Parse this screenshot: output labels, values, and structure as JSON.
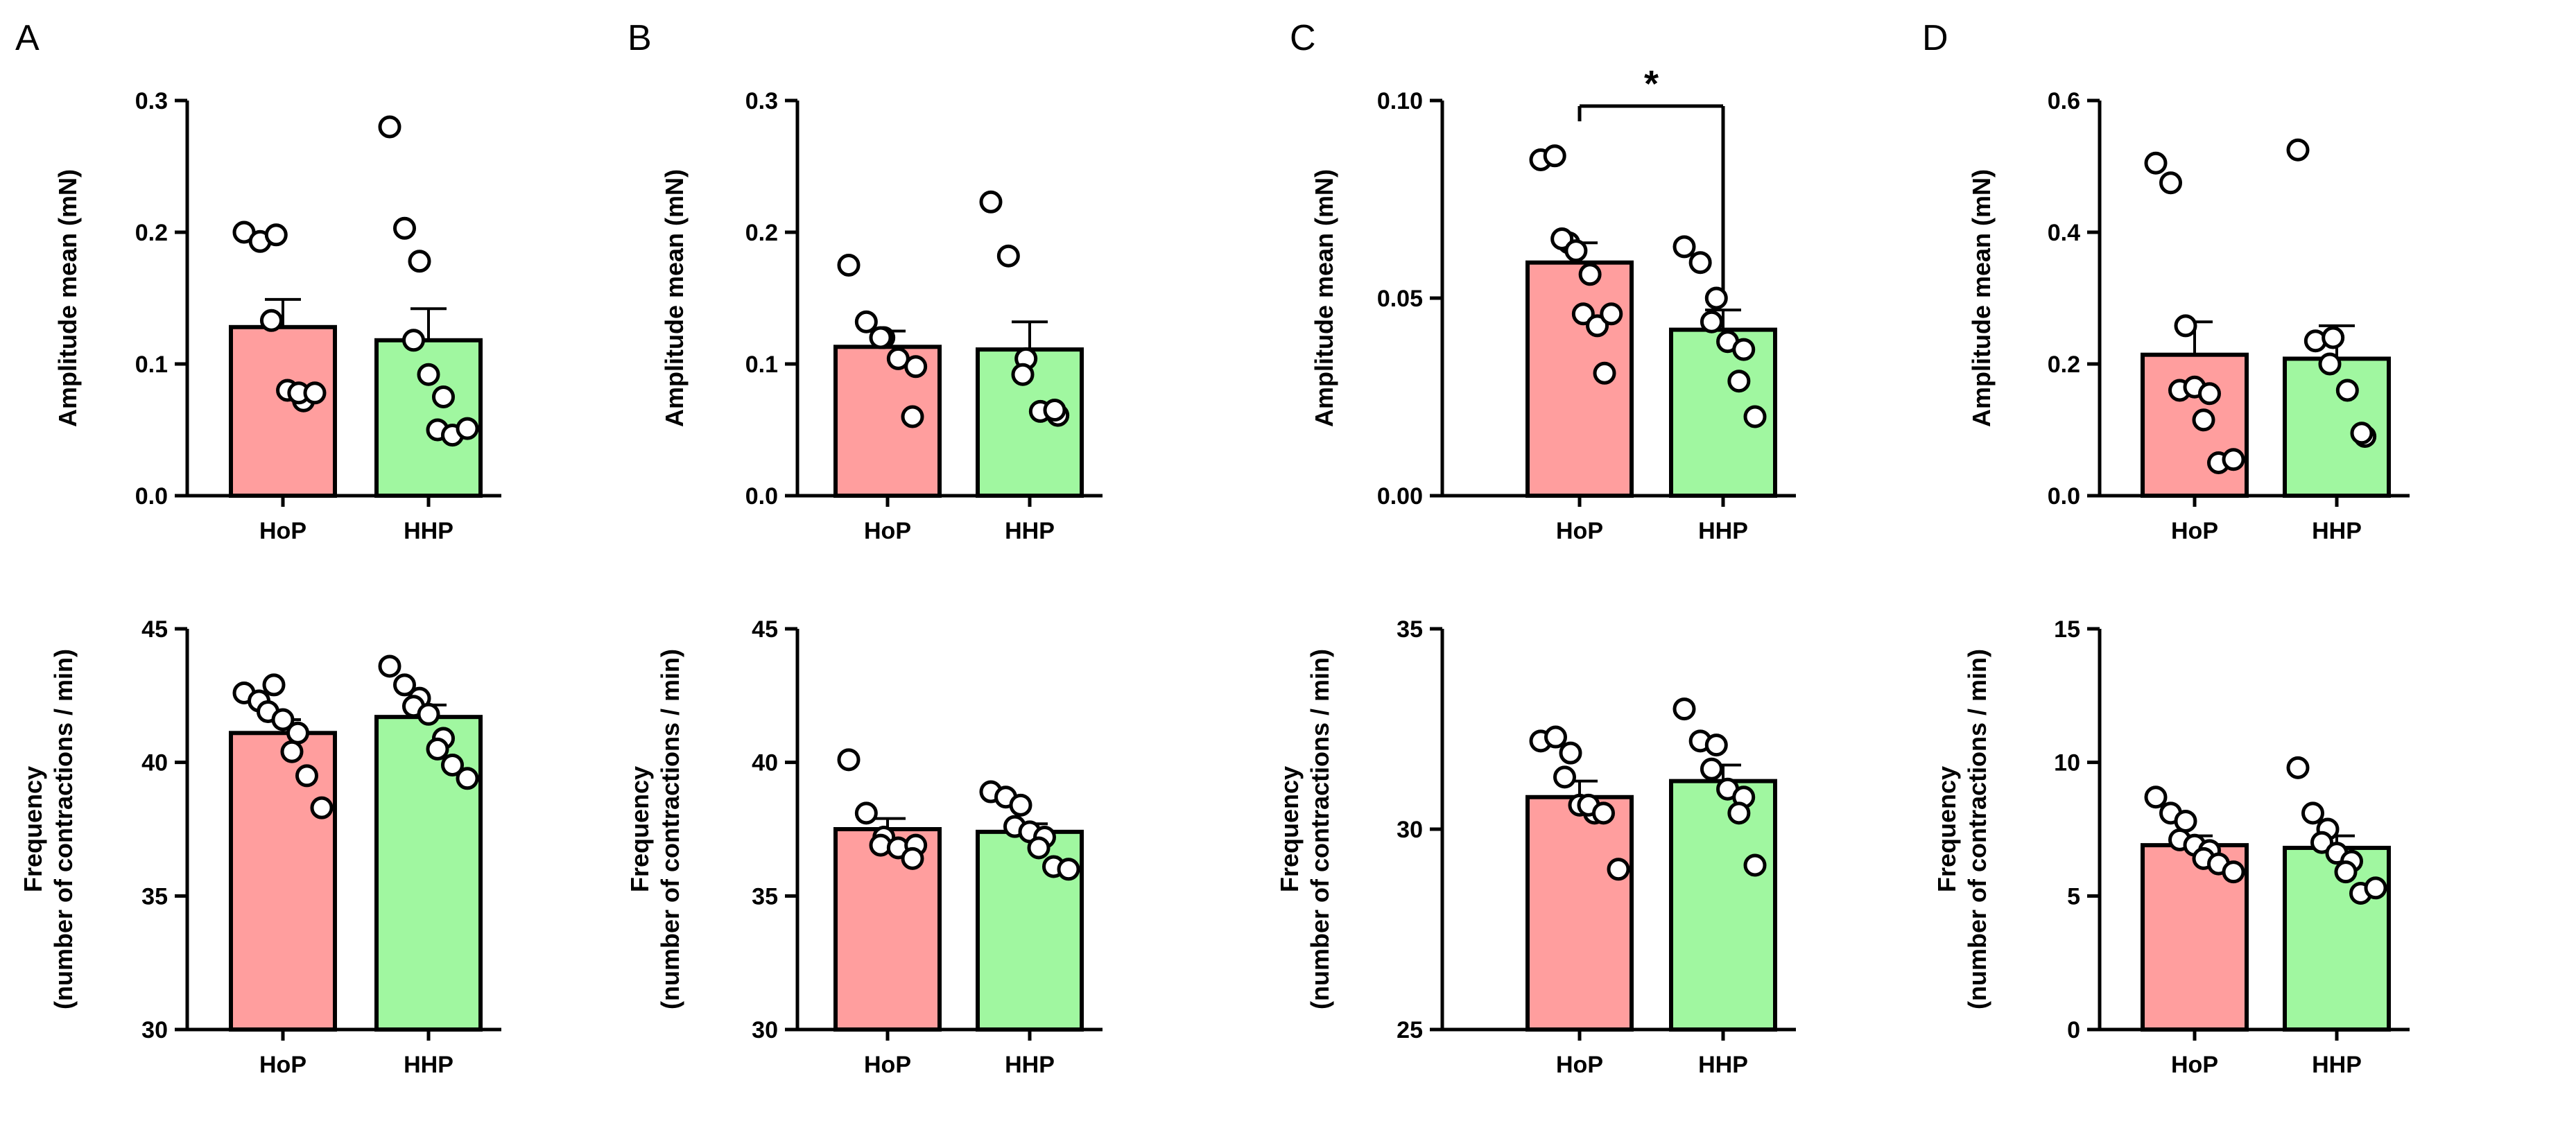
{
  "panel_letters": [
    "A",
    "B",
    "C",
    "D"
  ],
  "colors": {
    "HoP": "#ff9e9e",
    "HHP": "#a0f7a0",
    "axis": "#000000",
    "point_fill": "#ffffff"
  },
  "chart_data": [
    {
      "id": "A-top",
      "panel": "A",
      "type": "bar",
      "categories": [
        "HoP",
        "HHP"
      ],
      "ylabel": "Amplitude mean (mN)",
      "ylim": [
        0,
        0.3
      ],
      "yticks": [
        0.0,
        0.1,
        0.2,
        0.3
      ],
      "ytick_labels": [
        "0.0",
        "0.1",
        "0.2",
        "0.3"
      ],
      "means": [
        0.128,
        0.118
      ],
      "sem": [
        0.021,
        0.024
      ],
      "points": [
        [
          0.2,
          0.193,
          0.198,
          0.133,
          0.08,
          0.072,
          0.078,
          0.078
        ],
        [
          0.28,
          0.203,
          0.178,
          0.118,
          0.092,
          0.075,
          0.05,
          0.046,
          0.051
        ]
      ],
      "significance": null
    },
    {
      "id": "B-top",
      "panel": "B",
      "type": "bar",
      "categories": [
        "HoP",
        "HHP"
      ],
      "ylabel": "Amplitude mean (mN)",
      "ylim": [
        0,
        0.3
      ],
      "yticks": [
        0.0,
        0.1,
        0.2,
        0.3
      ],
      "ytick_labels": [
        "0.0",
        "0.1",
        "0.2",
        "0.3"
      ],
      "means": [
        0.113,
        0.111
      ],
      "sem": [
        0.012,
        0.021
      ],
      "points": [
        [
          0.175,
          0.132,
          0.12,
          0.12,
          0.104,
          0.098,
          0.06
        ],
        [
          0.223,
          0.182,
          0.104,
          0.092,
          0.064,
          0.061,
          0.065
        ]
      ],
      "significance": null
    },
    {
      "id": "C-top",
      "panel": "C",
      "type": "bar",
      "categories": [
        "HoP",
        "HHP"
      ],
      "ylabel": "Amplitude mean (mN)",
      "ylim": [
        0,
        0.1
      ],
      "yticks": [
        0.0,
        0.05,
        0.1
      ],
      "ytick_labels": [
        "0.00",
        "0.05",
        "0.10"
      ],
      "means": [
        0.059,
        0.042
      ],
      "sem": [
        0.005,
        0.005
      ],
      "points": [
        [
          0.085,
          0.086,
          0.064,
          0.065,
          0.062,
          0.056,
          0.046,
          0.043,
          0.046,
          0.031
        ],
        [
          0.063,
          0.059,
          0.05,
          0.044,
          0.039,
          0.037,
          0.029,
          0.02
        ]
      ],
      "significance": "*"
    },
    {
      "id": "D-top",
      "panel": "D",
      "type": "bar",
      "categories": [
        "HoP",
        "HHP"
      ],
      "ylabel": "Amplitude mean (mN)",
      "ylim": [
        0,
        0.6
      ],
      "yticks": [
        0.0,
        0.2,
        0.4,
        0.6
      ],
      "ytick_labels": [
        "0.0",
        "0.2",
        "0.4",
        "0.6"
      ],
      "means": [
        0.214,
        0.208
      ],
      "sem": [
        0.05,
        0.05
      ],
      "points": [
        [
          0.505,
          0.475,
          0.258,
          0.16,
          0.165,
          0.155,
          0.115,
          0.05,
          0.055
        ],
        [
          0.525,
          0.235,
          0.24,
          0.2,
          0.16,
          0.09,
          0.095
        ]
      ],
      "significance": null
    },
    {
      "id": "A-bottom",
      "panel": "A",
      "type": "bar",
      "categories": [
        "HoP",
        "HHP"
      ],
      "ylabel": "Frequency (number of contractions / min)",
      "ylim": [
        30,
        45
      ],
      "yticks": [
        30,
        35,
        40,
        45
      ],
      "ytick_labels": [
        "30",
        "35",
        "40",
        "45"
      ],
      "means": [
        41.1,
        41.7
      ],
      "sem": [
        0.5,
        0.45
      ],
      "points": [
        [
          42.6,
          42.3,
          42.9,
          41.9,
          41.6,
          41.1,
          40.4,
          39.5,
          38.3
        ],
        [
          43.6,
          42.9,
          42.4,
          42.1,
          41.8,
          40.9,
          40.5,
          39.9,
          39.4
        ]
      ],
      "significance": null
    },
    {
      "id": "B-bottom",
      "panel": "B",
      "type": "bar",
      "categories": [
        "HoP",
        "HHP"
      ],
      "ylabel": "Frequency (number of contractions / min)",
      "ylim": [
        30,
        45
      ],
      "yticks": [
        30,
        35,
        40,
        45
      ],
      "ytick_labels": [
        "30",
        "35",
        "40",
        "45"
      ],
      "means": [
        37.5,
        37.4
      ],
      "sem": [
        0.4,
        0.3
      ],
      "points": [
        [
          40.1,
          38.1,
          37.2,
          36.9,
          36.8,
          36.9,
          36.4
        ],
        [
          38.9,
          38.7,
          38.4,
          37.6,
          37.4,
          37.2,
          36.8,
          36.1,
          36.0
        ]
      ],
      "significance": null
    },
    {
      "id": "C-bottom",
      "panel": "C",
      "type": "bar",
      "categories": [
        "HoP",
        "HHP"
      ],
      "ylabel": "Frequency (number of contractions / min)",
      "ylim": [
        25,
        35
      ],
      "yticks": [
        25,
        30,
        35
      ],
      "ytick_labels": [
        "25",
        "30",
        "35"
      ],
      "means": [
        30.8,
        31.2
      ],
      "sem": [
        0.4,
        0.4
      ],
      "points": [
        [
          32.2,
          32.3,
          31.9,
          31.3,
          30.6,
          30.4,
          30.6,
          30.4,
          29.0
        ],
        [
          33.0,
          32.2,
          32.1,
          31.5,
          31.0,
          30.8,
          30.4,
          29.1
        ]
      ],
      "significance": null
    },
    {
      "id": "D-bottom",
      "panel": "D",
      "type": "bar",
      "categories": [
        "HoP",
        "HHP"
      ],
      "ylabel": "Frequency (number of contractions / min)",
      "ylim": [
        0,
        15
      ],
      "yticks": [
        0,
        5,
        10,
        15
      ],
      "ytick_labels": [
        "0",
        "5",
        "10",
        "15"
      ],
      "means": [
        6.9,
        6.8
      ],
      "sem": [
        0.35,
        0.45
      ],
      "points": [
        [
          8.7,
          8.1,
          7.8,
          7.1,
          6.9,
          6.7,
          6.4,
          6.2,
          5.9
        ],
        [
          9.8,
          8.1,
          7.5,
          7.0,
          6.6,
          6.3,
          5.9,
          5.1,
          5.3
        ]
      ],
      "significance": null
    }
  ]
}
